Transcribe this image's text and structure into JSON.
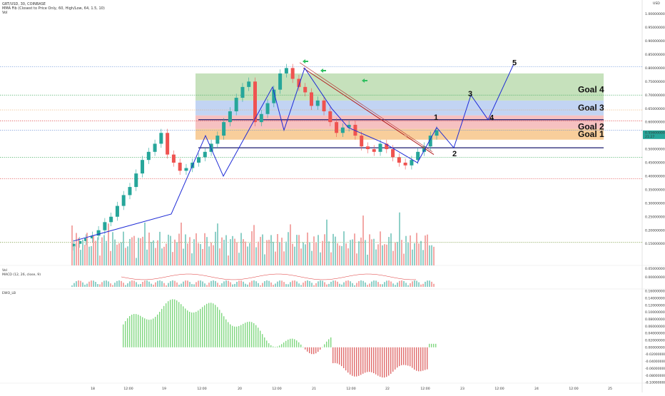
{
  "header": {
    "symbol_line": "GRT/USD, 30, COINBASE",
    "indicator_line": "MMA Fib (Closest to Price Only, 60, High/Low, 64, 1.5, 10)",
    "vol_line": "Vol"
  },
  "chart_data": {
    "type": "candlestick",
    "title": "GRT/USD, 30, COINBASE",
    "price_axis_label": "USD",
    "price_ticks": [
      "1.00000000",
      "0.95000000",
      "0.90000000",
      "0.85000000",
      "0.80000000",
      "0.75000000",
      "0.70000000",
      "0.65000000",
      "0.60000000",
      "0.55000000",
      "0.50000000",
      "0.45000000",
      "0.40000000",
      "0.35000000",
      "0.30000000",
      "0.25000000",
      "0.20000000",
      "0.15000000"
    ],
    "price_ylim": [
      0.12,
      1.02
    ],
    "time_ticks": [
      "18",
      "12:00",
      "19",
      "12:00",
      "20",
      "12:00",
      "21",
      "12:00",
      "22",
      "12:00",
      "23",
      "12:00",
      "24",
      "12:00",
      "25"
    ],
    "current_price": "0.55600000",
    "current_countdown": "21:27",
    "close": [
      0.15,
      0.16,
      0.17,
      0.18,
      0.2,
      0.23,
      0.25,
      0.29,
      0.33,
      0.36,
      0.41,
      0.46,
      0.49,
      0.52,
      0.56,
      0.48,
      0.45,
      0.42,
      0.43,
      0.45,
      0.47,
      0.49,
      0.52,
      0.55,
      0.6,
      0.64,
      0.69,
      0.73,
      0.75,
      0.6,
      0.63,
      0.67,
      0.72,
      0.78,
      0.8,
      0.76,
      0.73,
      0.71,
      0.66,
      0.68,
      0.64,
      0.6,
      0.56,
      0.58,
      0.59,
      0.55,
      0.51,
      0.5,
      0.49,
      0.52,
      0.5,
      0.47,
      0.45,
      0.44,
      0.46,
      0.49,
      0.51,
      0.55,
      0.57
    ],
    "goals": [
      {
        "label": "Goal 1",
        "from": 0.535,
        "to": 0.575,
        "color": "#f7c58a"
      },
      {
        "label": "Goal 2",
        "from": 0.575,
        "to": 0.625,
        "color": "#f4b6b6"
      },
      {
        "label": "Goal 3",
        "from": 0.625,
        "to": 0.68,
        "color": "#b7cdf1"
      },
      {
        "label": "Goal 4",
        "from": 0.68,
        "to": 0.78,
        "color": "#bcdcb0"
      }
    ],
    "horizontal_levels": [
      0.505,
      0.609
    ],
    "wave_labels": [
      "1",
      "2",
      "3",
      "4",
      "5"
    ],
    "vol_panel_label": "Vol",
    "macd_label": "MACD (12, 26, close, 9)",
    "macd_ticks": [
      "0.05000000",
      "0.00000000"
    ],
    "ewo_label": "EWO_LB",
    "ewo_ticks": [
      "0.16000000",
      "0.14000000",
      "0.12000000",
      "0.10000000",
      "0.08000000",
      "0.06000000",
      "0.04000000",
      "0.02000000",
      "0.00000000",
      "-0.02000000",
      "-0.04000000",
      "-0.06000000",
      "-0.08000000",
      "-0.10000000"
    ],
    "colors": {
      "up": "#26a69a",
      "down": "#ef5350",
      "wave": "#1e2bd6",
      "trend": "#b22222",
      "ewo_pos": "#7fd77f",
      "ewo_neg": "#e06b6b",
      "arrow": "#2fbf5f"
    }
  }
}
